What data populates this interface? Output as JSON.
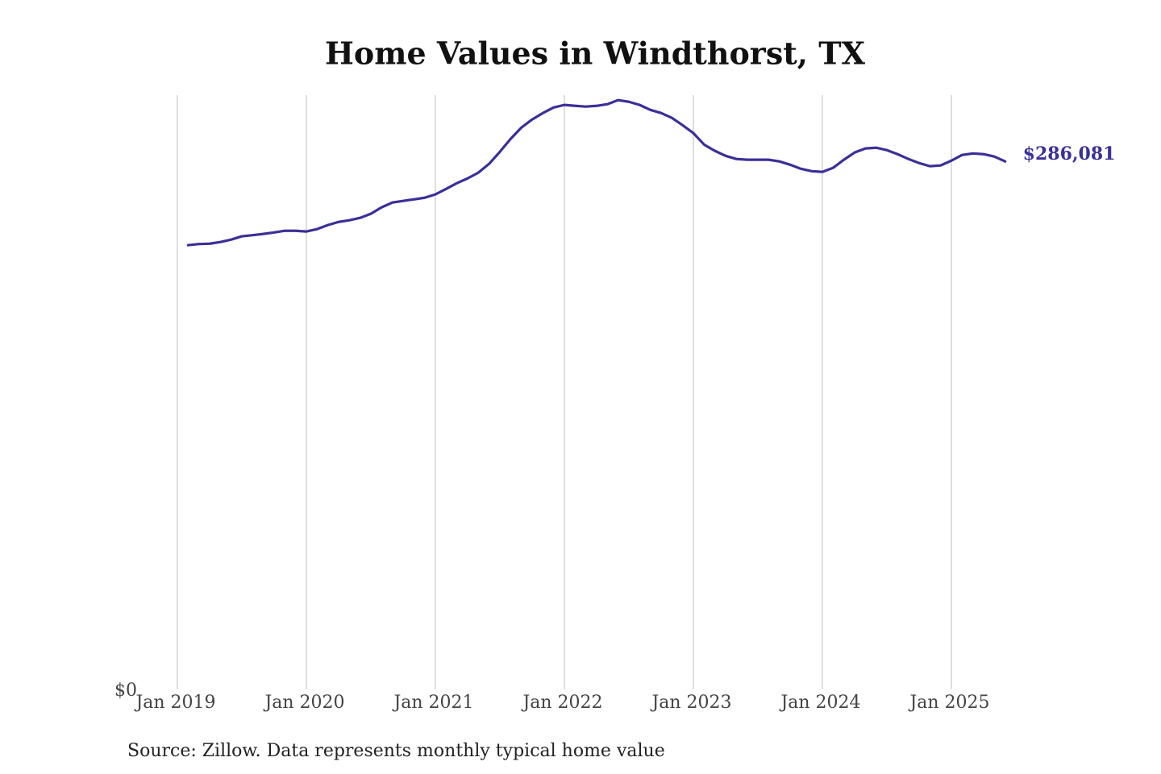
{
  "chart_data": {
    "type": "line",
    "title": "Home Values in Windthorst, TX",
    "source": "Source: Zillow. Data represents monthly typical home value",
    "x": [
      "2019-02",
      "2019-03",
      "2019-04",
      "2019-05",
      "2019-06",
      "2019-07",
      "2019-08",
      "2019-09",
      "2019-10",
      "2019-11",
      "2019-12",
      "2020-01",
      "2020-02",
      "2020-03",
      "2020-04",
      "2020-05",
      "2020-06",
      "2020-07",
      "2020-08",
      "2020-09",
      "2020-10",
      "2020-11",
      "2020-12",
      "2021-01",
      "2021-02",
      "2021-03",
      "2021-04",
      "2021-05",
      "2021-06",
      "2021-07",
      "2021-08",
      "2021-09",
      "2021-10",
      "2021-11",
      "2021-12",
      "2022-01",
      "2022-02",
      "2022-03",
      "2022-04",
      "2022-05",
      "2022-06",
      "2022-07",
      "2022-08",
      "2022-09",
      "2022-10",
      "2022-11",
      "2022-12",
      "2023-01",
      "2023-02",
      "2023-03",
      "2023-04",
      "2023-05",
      "2023-06",
      "2023-07",
      "2023-08",
      "2023-09",
      "2023-10",
      "2023-11",
      "2023-12",
      "2024-01",
      "2024-02",
      "2024-03",
      "2024-04",
      "2024-05",
      "2024-06",
      "2024-07",
      "2024-08",
      "2024-09",
      "2024-10",
      "2024-11",
      "2024-12",
      "2025-01",
      "2025-02",
      "2025-03",
      "2025-04",
      "2025-05",
      "2025-06"
    ],
    "series": [
      {
        "name": "Home value",
        "color": "#3a3096",
        "values": [
          240700,
          241300,
          241500,
          242400,
          243700,
          245500,
          246100,
          246800,
          247600,
          248500,
          248500,
          248100,
          249400,
          251600,
          253300,
          254200,
          255500,
          257700,
          261200,
          263800,
          264700,
          265500,
          266400,
          268200,
          271200,
          274300,
          276900,
          280000,
          284800,
          291300,
          298300,
          304400,
          308800,
          312300,
          315300,
          316700,
          316200,
          315800,
          316200,
          317100,
          319300,
          318400,
          316700,
          314000,
          312300,
          309700,
          305700,
          301400,
          295200,
          291800,
          289100,
          287400,
          287000,
          287000,
          287000,
          286100,
          284300,
          282100,
          280800,
          280400,
          282600,
          287000,
          290900,
          293100,
          293500,
          292200,
          290000,
          287400,
          285200,
          283500,
          283900,
          286500,
          289600,
          290400,
          290000,
          288700,
          286081
        ],
        "value_labels": [
          null,
          null,
          null,
          null,
          null,
          null,
          null,
          null,
          null,
          null,
          null,
          null,
          null,
          null,
          null,
          null,
          null,
          null,
          null,
          null,
          null,
          null,
          null,
          null,
          null,
          null,
          null,
          null,
          null,
          null,
          null,
          null,
          null,
          null,
          null,
          null,
          null,
          null,
          null,
          null,
          null,
          null,
          null,
          null,
          null,
          null,
          null,
          null,
          null,
          null,
          null,
          null,
          null,
          null,
          null,
          null,
          null,
          null,
          null,
          null,
          null,
          null,
          null,
          null,
          null,
          null,
          null,
          null,
          null,
          null,
          null,
          null,
          null,
          null,
          null,
          null,
          "$286,081"
        ]
      }
    ],
    "xlim": [
      "2019-01",
      "2025-06"
    ],
    "xticks": [
      {
        "value": "2019-01",
        "label": "Jan 2019"
      },
      {
        "value": "2020-01",
        "label": "Jan 2020"
      },
      {
        "value": "2021-01",
        "label": "Jan 2021"
      },
      {
        "value": "2022-01",
        "label": "Jan 2022"
      },
      {
        "value": "2023-01",
        "label": "Jan 2023"
      },
      {
        "value": "2024-01",
        "label": "Jan 2024"
      },
      {
        "value": "2025-01",
        "label": "Jan 2025"
      }
    ],
    "ylim": [
      0,
      322000
    ],
    "yticks": [
      {
        "value": 0,
        "label": "$0"
      }
    ],
    "grid": true
  }
}
